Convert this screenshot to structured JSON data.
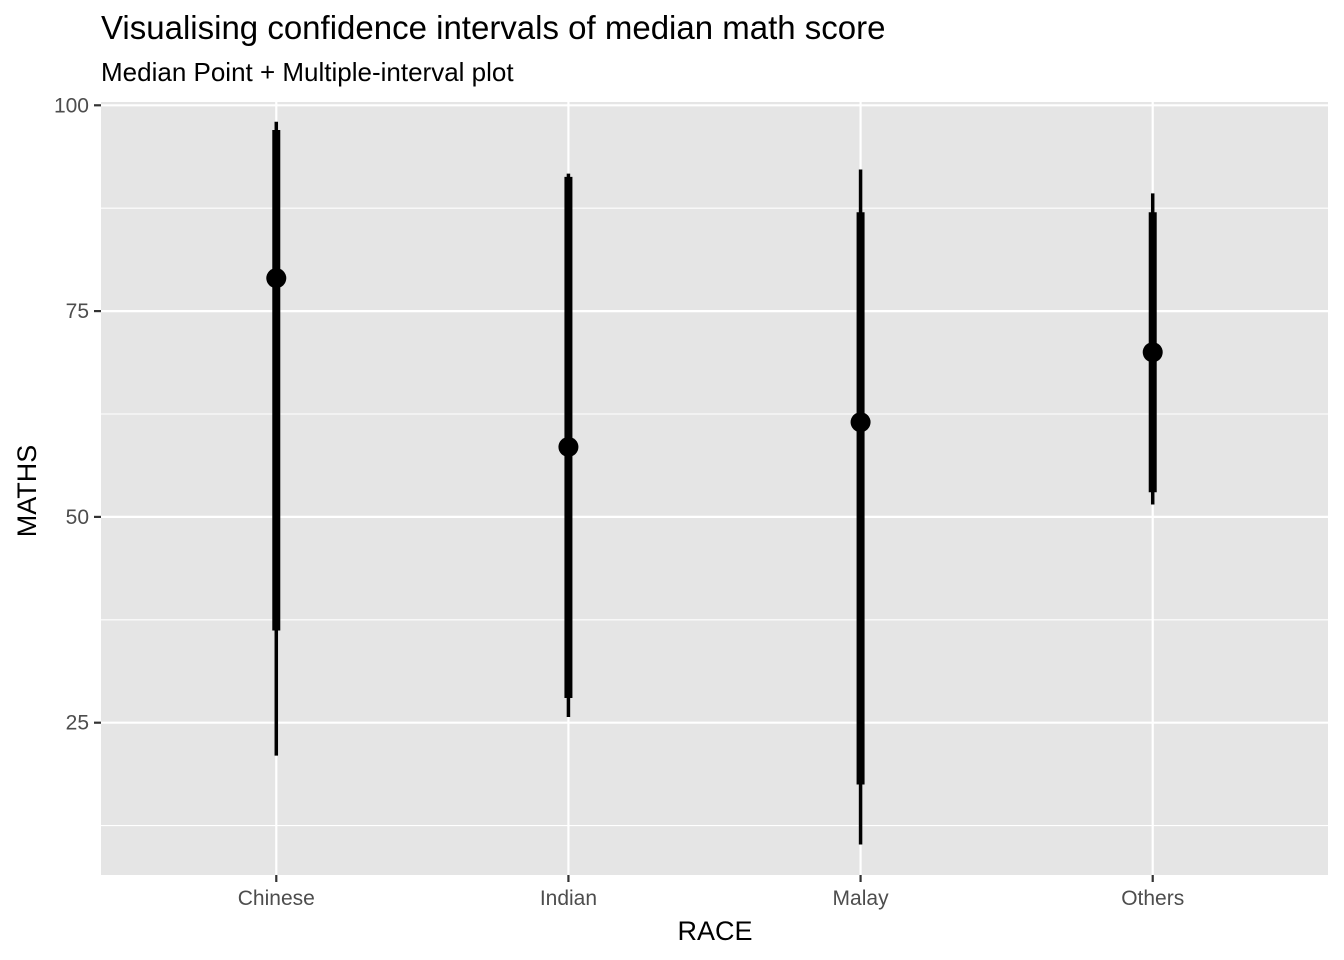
{
  "chart_data": {
    "type": "scatter",
    "title": "Visualising confidence intervals of median math score",
    "subtitle": "Median Point + Multiple-interval plot",
    "xlabel": "RACE",
    "ylabel": "MATHS",
    "categories": [
      "Chinese",
      "Indian",
      "Malay",
      "Others"
    ],
    "ylim": [
      6.5,
      100.4
    ],
    "yticks": [
      25,
      50,
      75,
      100
    ],
    "grid": true,
    "series": [
      {
        "values": [
          {
            "category": "Chinese",
            "median": 79.0,
            "inner": [
              36.2,
              97.0
            ],
            "outer": [
              21.0,
              98.0
            ]
          },
          {
            "category": "Indian",
            "median": 58.5,
            "inner": [
              28.0,
              91.3
            ],
            "outer": [
              25.7,
              91.7
            ]
          },
          {
            "category": "Malay",
            "median": 61.5,
            "inner": [
              17.5,
              87.0
            ],
            "outer": [
              10.2,
              92.2
            ]
          },
          {
            "category": "Others",
            "median": 70.0,
            "inner": [
              53.0,
              87.0
            ],
            "outer": [
              51.5,
              89.3
            ]
          }
        ]
      }
    ],
    "colors": {
      "panel": "#e5e5e5",
      "grid": "#ffffff",
      "marks": "#000000",
      "tick_text": "#4d4d4d"
    }
  }
}
